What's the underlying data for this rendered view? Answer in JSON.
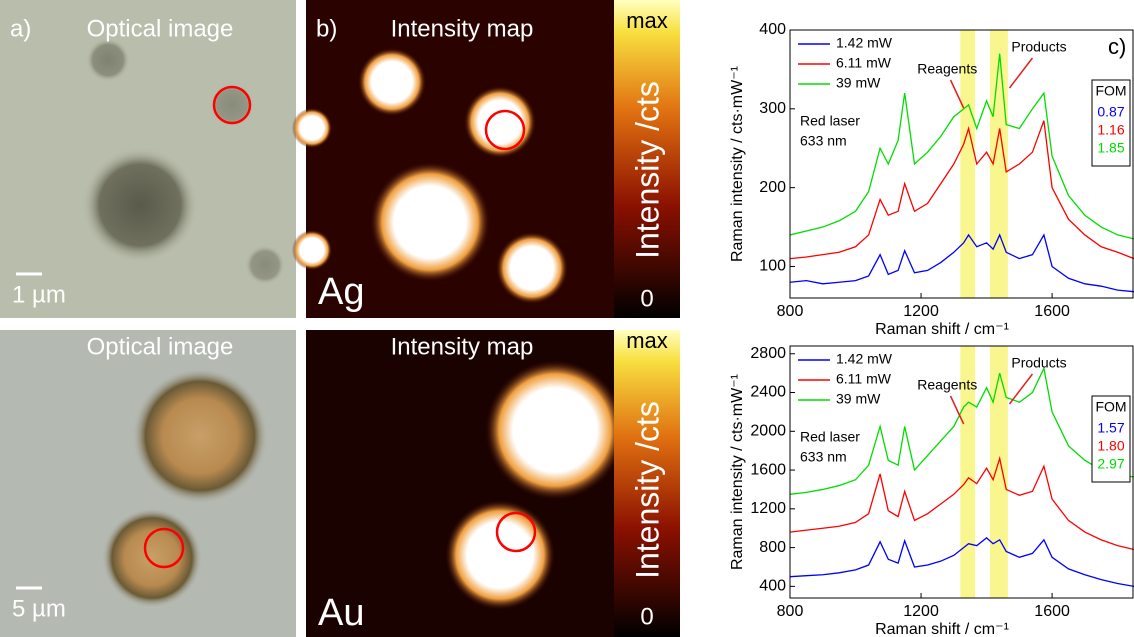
{
  "panels": {
    "row1": {
      "optical_title": "Optical image",
      "optical_letter": "a)",
      "scale": "1 µm",
      "map_title": "Intensity map",
      "map_letter": "b)",
      "metal": "Ag",
      "cbar_max": "max",
      "cbar_min": "0",
      "cbar_label": "Intensity /cts"
    },
    "row2": {
      "optical_title": "Optical image",
      "scale": "5 µm",
      "map_title": "Intensity map",
      "metal": "Au",
      "cbar_max": "max",
      "cbar_min": "0",
      "cbar_label": "Intensity /cts"
    }
  },
  "chart_data": [
    {
      "type": "line",
      "panel_label": "c)",
      "xlabel": "Raman shift / cm⁻¹",
      "ylabel": "Raman intensity / cts·mW⁻¹",
      "xlim": [
        800,
        1850
      ],
      "xticks": [
        800,
        1200,
        1600
      ],
      "ylim": [
        60,
        400
      ],
      "yticks": [
        100,
        200,
        300,
        400
      ],
      "highlights": [
        [
          1320,
          1365
        ],
        [
          1410,
          1465
        ]
      ],
      "highlight_color": "#f7f26a",
      "annotations": {
        "reagents": "Reagents",
        "products": "Products",
        "laser": "Red laser",
        "wavelength": "633 nm"
      },
      "fom": {
        "label": "FOM",
        "values": [
          "0.87",
          "1.16",
          "1.85"
        ]
      },
      "x": [
        800,
        850,
        900,
        950,
        1000,
        1040,
        1075,
        1100,
        1130,
        1150,
        1180,
        1220,
        1260,
        1300,
        1330,
        1345,
        1370,
        1400,
        1420,
        1440,
        1460,
        1500,
        1540,
        1575,
        1600,
        1650,
        1700,
        1750,
        1800,
        1850
      ],
      "series": [
        {
          "name": "1.42 mW",
          "color": "#0000ff",
          "values": [
            80,
            82,
            78,
            80,
            82,
            88,
            115,
            90,
            95,
            120,
            92,
            95,
            105,
            118,
            130,
            140,
            125,
            130,
            122,
            140,
            118,
            110,
            115,
            140,
            100,
            85,
            78,
            75,
            70,
            68
          ]
        },
        {
          "name": "6.11 mW",
          "color": "#ff0000",
          "values": [
            110,
            112,
            115,
            118,
            125,
            140,
            185,
            165,
            170,
            205,
            170,
            180,
            205,
            230,
            255,
            275,
            230,
            245,
            230,
            275,
            220,
            230,
            245,
            285,
            200,
            160,
            140,
            125,
            118,
            110
          ]
        },
        {
          "name": "39 mW",
          "color": "#00dd00",
          "values": [
            140,
            145,
            150,
            158,
            170,
            195,
            250,
            230,
            260,
            320,
            230,
            245,
            265,
            290,
            300,
            305,
            275,
            310,
            290,
            370,
            280,
            275,
            300,
            320,
            240,
            190,
            165,
            150,
            140,
            135
          ]
        }
      ]
    },
    {
      "type": "line",
      "xlabel": "Raman shift / cm⁻¹",
      "ylabel": "Raman intensity / cts·mW⁻¹",
      "xlim": [
        800,
        1850
      ],
      "xticks": [
        800,
        1200,
        1600
      ],
      "ylim": [
        280,
        2880
      ],
      "yticks": [
        400,
        800,
        1200,
        1600,
        2000,
        2400,
        2800
      ],
      "highlights": [
        [
          1320,
          1365
        ],
        [
          1410,
          1465
        ]
      ],
      "highlight_color": "#f7f26a",
      "annotations": {
        "reagents": "Reagents",
        "products": "Products",
        "laser": "Red laser",
        "wavelength": "633 nm"
      },
      "fom": {
        "label": "FOM",
        "values": [
          "1.57",
          "1.80",
          "2.97"
        ]
      },
      "x": [
        800,
        850,
        900,
        950,
        1000,
        1040,
        1075,
        1100,
        1130,
        1150,
        1180,
        1220,
        1260,
        1300,
        1330,
        1345,
        1370,
        1400,
        1420,
        1440,
        1460,
        1500,
        1540,
        1575,
        1600,
        1650,
        1700,
        1750,
        1800,
        1850
      ],
      "series": [
        {
          "name": "1.42 mW",
          "color": "#0000ff",
          "values": [
            500,
            510,
            520,
            540,
            570,
            620,
            860,
            680,
            640,
            870,
            600,
            620,
            660,
            720,
            800,
            840,
            820,
            900,
            840,
            880,
            760,
            700,
            740,
            880,
            700,
            580,
            520,
            470,
            430,
            400
          ]
        },
        {
          "name": "6.11 mW",
          "color": "#ff0000",
          "values": [
            960,
            980,
            1000,
            1020,
            1060,
            1150,
            1560,
            1180,
            1120,
            1380,
            1080,
            1150,
            1250,
            1350,
            1450,
            1520,
            1460,
            1620,
            1500,
            1720,
            1400,
            1340,
            1380,
            1640,
            1300,
            1080,
            960,
            880,
            820,
            780
          ]
        },
        {
          "name": "39 mW",
          "color": "#00dd00",
          "values": [
            1350,
            1370,
            1400,
            1440,
            1500,
            1650,
            2050,
            1700,
            1650,
            2050,
            1600,
            1750,
            1900,
            2050,
            2250,
            2300,
            2250,
            2450,
            2300,
            2600,
            2350,
            2300,
            2400,
            2650,
            2200,
            1850,
            1700,
            1600,
            1550,
            1530
          ]
        }
      ]
    }
  ]
}
